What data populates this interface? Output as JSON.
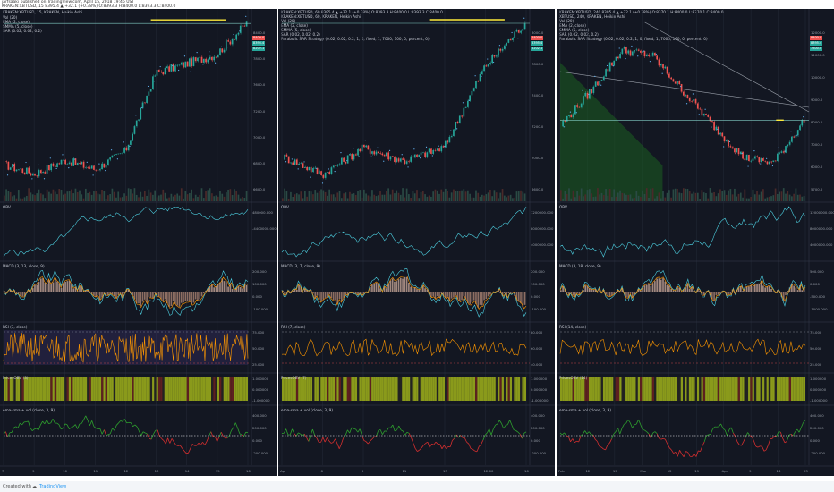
{
  "header": {
    "line1": "jarfsaaki published on TradingView.com, April 15, 2018 19:46 UST",
    "line2": "KRAKEN:XBTUSD, 15 8395.4 ▲ +32.1 (+0.38%) O:8393.3 H:8400.0 L:8393.3 C:8400.0"
  },
  "footer": {
    "created_with": "Created with",
    "brand": "TradingView"
  },
  "colors": {
    "background": "#131722",
    "up": "#26a69a",
    "down": "#ef5350",
    "yellow": "#ffeb3b",
    "orange": "#ff9800",
    "teal": "#4dd0e1",
    "olive": "#8a9a1b",
    "green_line": "#2e9e2e",
    "red_line": "#d32f2f"
  },
  "panels": [
    {
      "title": "KRAKEN:XBTUSD, 15, KRAKEN, Heikin Ashi",
      "title_above": "",
      "legend": [
        "Vol (20)",
        "EMA (2, close)",
        "SMMA (5, close)",
        "SAR (0.02, 0.02, 0.2)"
      ],
      "price_axis": [
        "8400.0",
        "7800.0",
        "7600.0",
        "7200.0",
        "7000.0",
        "6800.0",
        "6600.0"
      ],
      "price_tags": [
        "8400.0",
        "8395.4",
        "8202.1"
      ],
      "obv_label": "OBV",
      "obv_axis": [
        "480000.000",
        "-4400000.000"
      ],
      "macd_label": "MACD (3, 13, close, 9)",
      "macd_axis": [
        "200.000",
        "100.000",
        "0.000",
        "-100.000"
      ],
      "rsi_label": "RSI (3, close)",
      "rsi_axis": [
        "75.000",
        "50.000",
        "25.000"
      ],
      "pp_label": "PricesOBV (3)",
      "pp_axis": [
        "1.000000",
        "0.000000",
        "-1.000000"
      ],
      "emaema_label": "ema-sma + vol (close, 3, 9)",
      "emaema_axis": [
        "400.000",
        "200.000",
        "0.000",
        "-200.000"
      ],
      "xlabels": [
        "7",
        "9",
        "10",
        "11",
        "12",
        "13",
        "14",
        "15",
        "16"
      ]
    },
    {
      "title": "KRAKEN:XBTUSD, 60, KRAKEN, Heikin Ashi",
      "title_above": "KRAKEN:XBTUSD, 60 8395.4 ▲ +32.1 (+0.38%) O:8393.3 H:8400.0 L:8393.3 C:8400.0",
      "legend": [
        "Vol (20)",
        "EMA (2, close)",
        "SMMA (5, close)",
        "SAR (0.02, 0.02, 0.2)",
        "Parabolic SAR Strategy (0.02, 0.02, 0.2, 1, 0, fixed, 1, 7000, 100, 0, percent, 0)"
      ],
      "price_axis": [
        "8000.0",
        "7800.0",
        "7400.0",
        "7200.0",
        "7000.0",
        "6600.0"
      ],
      "price_tags": [
        "8400.0",
        "8395.4",
        "8202.1"
      ],
      "obv_label": "OBV",
      "obv_axis": [
        "1200000.000",
        "8000000.000",
        "4000000.000"
      ],
      "macd_label": "MACD (3, 7, close, 9)",
      "macd_axis": [
        "200.000",
        "100.000",
        "0.000",
        "-100.000"
      ],
      "rsi_label": "RSI (7, close)",
      "rsi_axis": [
        "80.000",
        "60.000",
        "40.000"
      ],
      "pp_label": "PricesOBV (7)",
      "pp_axis": [
        "1.000000",
        "0.000000",
        "-1.000000"
      ],
      "emaema_label": "ema-sma + vol (close, 3, 9)",
      "emaema_axis": [
        "400.000",
        "200.000",
        "0.000",
        "-200.000"
      ],
      "xlabels": [
        "Apr",
        "6",
        "9",
        "11",
        "13",
        "12:00",
        "16"
      ]
    },
    {
      "title": "XBTUSD, 240, KRAKEN, Heikin Ashi",
      "title_above": "KRAKEN:XBTUSD, 240 8395.4 ▲ +32.1 (+0.38%) O:8370.1 H:8400.0 L:8370.1 C:8400.0",
      "legend": [
        "Vol (20)",
        "EMA (2, close)",
        "SMMA (5, close)",
        "SAR (0.02, 0.02, 0.2)",
        "Parabolic SAR Strategy (0.02, 0.02, 0.2, 1, 0, fixed, 1, 7000, 100, 0, percent, 0)"
      ],
      "price_axis": [
        "12000.0",
        "11000.0",
        "10000.0",
        "9000.0",
        "8000.0",
        "7000.0",
        "6000.0",
        "5700.0"
      ],
      "price_tags": [
        "8400.0",
        "8395.4",
        "7800.0"
      ],
      "obv_label": "OBV",
      "obv_axis": [
        "12000000.000",
        "8000000.000",
        "4000000.000"
      ],
      "macd_label": "MACD (3, 18, close, 9)",
      "macd_axis": [
        "500.000",
        "0.000",
        "-500.000",
        "-1000.000"
      ],
      "rsi_label": "RSI (14, close)",
      "rsi_axis": [
        "75.000",
        "50.000",
        "25.000"
      ],
      "pp_label": "PricesOBV (14)",
      "pp_axis": [
        "1.000000",
        "0.000000",
        "-1.000000"
      ],
      "emaema_label": "ema-sma + vol (close, 3, 9)",
      "emaema_axis": [
        "400.000",
        "200.000",
        "0.000",
        "-200.000"
      ],
      "xlabels": [
        "Feb",
        "12",
        "19",
        "Mar",
        "12",
        "19",
        "Apr",
        "9",
        "16",
        "23"
      ]
    }
  ],
  "chart_data": [
    {
      "type": "line",
      "title": "KRAKEN:XBTUSD, 15, KRAKEN, Heikin Ashi",
      "xlabel": "",
      "ylabel": "",
      "x": [
        "7",
        "9",
        "10",
        "11",
        "12",
        "13",
        "14",
        "15",
        "16"
      ],
      "series": [
        {
          "name": "",
          "values": [
            6850,
            6750,
            6900,
            6800,
            7000,
            7850,
            7950,
            8050,
            8390
          ]
        }
      ],
      "ylim": [
        6550,
        8450
      ],
      "grid": true
    },
    {
      "type": "line",
      "title": "KRAKEN:XBTUSD, 60, KRAKEN, Heikin Ashi",
      "xlabel": "",
      "ylabel": "",
      "x": [
        "Apr",
        "6",
        "9",
        "11",
        "13",
        "12:00",
        "16"
      ],
      "series": [
        {
          "name": "",
          "values": [
            6900,
            6700,
            7000,
            6850,
            7000,
            7900,
            8390
          ]
        }
      ],
      "ylim": [
        6500,
        8450
      ],
      "grid": true
    },
    {
      "type": "line",
      "title": "XBTUSD, 240, KRAKEN, Heikin Ashi",
      "xlabel": "",
      "ylabel": "",
      "x": [
        "Feb",
        "12",
        "19",
        "Mar",
        "12",
        "19",
        "Apr",
        "9",
        "16"
      ],
      "series": [
        {
          "name": "",
          "values": [
            8200,
            9500,
            11000,
            10800,
            9500,
            8200,
            7000,
            6800,
            8390
          ]
        }
      ],
      "ylim": [
        5700,
        12200
      ],
      "grid": true
    }
  ]
}
